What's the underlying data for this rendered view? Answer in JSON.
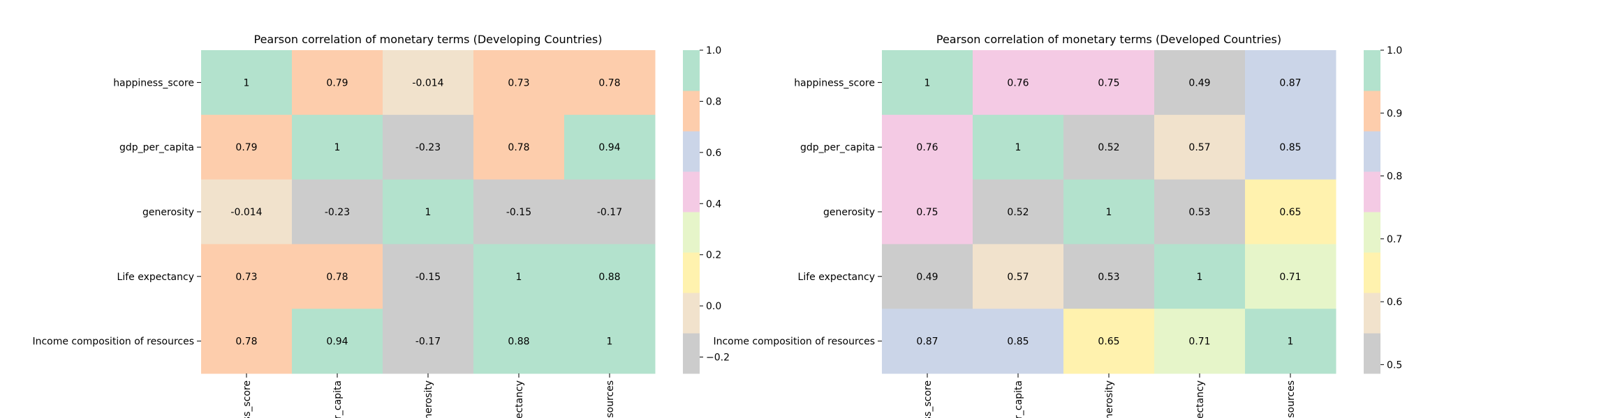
{
  "chart_data": [
    {
      "type": "heatmap",
      "title": "Pearson correlation of monetary terms (Developing Countries)",
      "row_labels": [
        "happiness_score",
        "gdp_per_capita",
        "generosity",
        "Life expectancy ",
        "Income composition of resources"
      ],
      "col_labels": [
        "ss_score",
        "er_capita",
        "enerosity",
        "ectancy",
        "esources"
      ],
      "values": [
        [
          1,
          0.79,
          -0.014,
          0.73,
          0.78
        ],
        [
          0.79,
          1,
          -0.23,
          0.78,
          0.94
        ],
        [
          -0.014,
          -0.23,
          1,
          -0.15,
          -0.17
        ],
        [
          0.73,
          0.78,
          -0.15,
          1,
          0.88
        ],
        [
          0.78,
          0.94,
          -0.17,
          0.88,
          1
        ]
      ],
      "cell_labels": [
        [
          "1",
          "0.79",
          "-0.014",
          "0.73",
          "0.78"
        ],
        [
          "0.79",
          "1",
          "-0.23",
          "0.78",
          "0.94"
        ],
        [
          "-0.014",
          "-0.23",
          "1",
          "-0.15",
          "-0.17"
        ],
        [
          "0.73",
          "0.78",
          "-0.15",
          "1",
          "0.88"
        ],
        [
          "0.78",
          "0.94",
          "-0.17",
          "0.88",
          "1"
        ]
      ],
      "colorbar": {
        "vmin": -0.264,
        "vmax": 1.0,
        "colors": [
          "#cccccc",
          "#f1e2cc",
          "#fff2ae",
          "#e6f5c9",
          "#f4cae4",
          "#cbd5e8",
          "#fdcdac",
          "#b3e2cd"
        ],
        "ticks": [
          -0.2,
          0.0,
          0.2,
          0.4,
          0.6,
          0.8,
          1.0
        ],
        "tick_labels": [
          "−0.2",
          "0.0",
          "0.2",
          "0.4",
          "0.6",
          "0.8",
          "1.0"
        ]
      }
    },
    {
      "type": "heatmap",
      "title": "Pearson correlation of monetary terms (Developed Countries)",
      "row_labels": [
        "happiness_score",
        "gdp_per_capita",
        "generosity",
        "Life expectancy ",
        "Income composition of resources"
      ],
      "col_labels": [
        "ss_score",
        "er_capita",
        "enerosity",
        "ectancy",
        "esources"
      ],
      "values": [
        [
          1,
          0.76,
          0.75,
          0.49,
          0.87
        ],
        [
          0.76,
          1,
          0.52,
          0.57,
          0.85
        ],
        [
          0.75,
          0.52,
          1,
          0.53,
          0.65
        ],
        [
          0.49,
          0.57,
          0.53,
          1,
          0.71
        ],
        [
          0.87,
          0.85,
          0.65,
          0.71,
          1
        ]
      ],
      "cell_labels": [
        [
          "1",
          "0.76",
          "0.75",
          "0.49",
          "0.87"
        ],
        [
          "0.76",
          "1",
          "0.52",
          "0.57",
          "0.85"
        ],
        [
          "0.75",
          "0.52",
          "1",
          "0.53",
          "0.65"
        ],
        [
          "0.49",
          "0.57",
          "0.53",
          "1",
          "0.71"
        ],
        [
          "0.87",
          "0.85",
          "0.65",
          "0.71",
          "1"
        ]
      ],
      "colorbar": {
        "vmin": 0.486,
        "vmax": 1.0,
        "colors": [
          "#cccccc",
          "#f1e2cc",
          "#fff2ae",
          "#e6f5c9",
          "#f4cae4",
          "#cbd5e8",
          "#fdcdac",
          "#b3e2cd"
        ],
        "ticks": [
          0.5,
          0.6,
          0.7,
          0.8,
          0.9,
          1.0
        ],
        "tick_labels": [
          "0.5",
          "0.6",
          "0.7",
          "0.8",
          "0.9",
          "1.0"
        ]
      }
    }
  ]
}
